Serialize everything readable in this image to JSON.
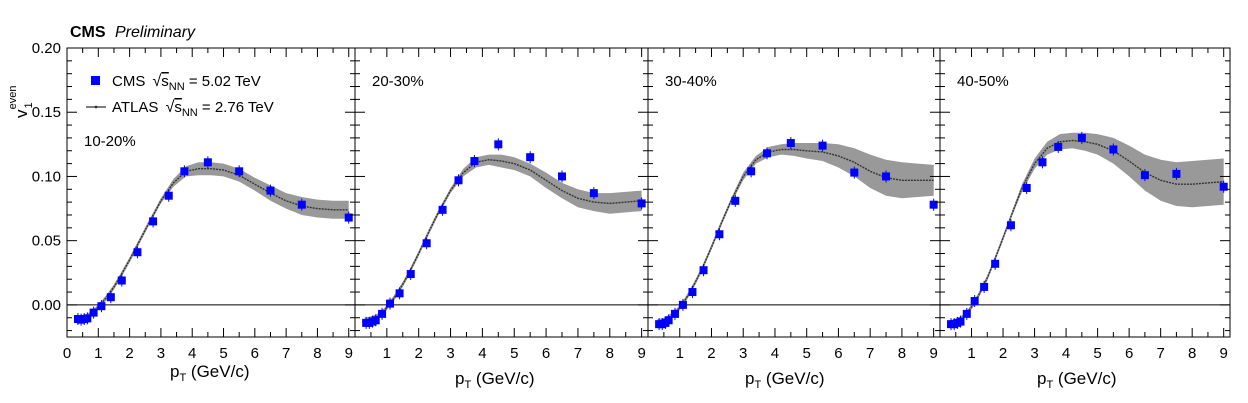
{
  "header": {
    "experiment": "CMS",
    "status": "Preliminary"
  },
  "legend": {
    "cms": {
      "prefix": "CMS",
      "sqrt_s": "s",
      "sub": "NN",
      "value": " = 5.02 TeV"
    },
    "atlas": {
      "prefix": "ATLAS",
      "sqrt_s": "s",
      "sub": "NN",
      "value": " = 2.76 TeV"
    }
  },
  "y_axis_title": {
    "main": "v",
    "sub": "1",
    "sup": "even"
  },
  "x_axis_title": {
    "main": "p",
    "sub": "T",
    "rest": " (GeV/c)"
  },
  "colors": {
    "cms_marker": "#0000ff",
    "atlas_band": "#999999",
    "atlas_line": "#333333",
    "frame": "#000000"
  },
  "chart_data": [
    {
      "type": "scatter",
      "label": "10-20%",
      "xlabel": "p_T (GeV/c)",
      "ylabel": "v_1^even",
      "xlim": [
        0,
        9.2
      ],
      "ylim": [
        -0.025,
        0.2
      ],
      "x_ticks": [
        0,
        1,
        2,
        3,
        4,
        5,
        6,
        7,
        8,
        9
      ],
      "x_tick_labels": [
        "0",
        "1",
        "2",
        "3",
        "4",
        "5",
        "6",
        "7",
        "8",
        "9"
      ],
      "y_ticks": [
        0.0,
        0.05,
        0.1,
        0.15,
        0.2
      ],
      "y_tick_labels": [
        "0.00",
        "0.05",
        "0.10",
        "0.15",
        "0.20"
      ],
      "series": [
        {
          "name": "CMS",
          "marker": "square",
          "x": [
            0.35,
            0.45,
            0.55,
            0.65,
            0.85,
            1.1,
            1.4,
            1.75,
            2.25,
            2.75,
            3.25,
            3.75,
            4.5,
            5.5,
            6.5,
            7.5,
            9.0
          ],
          "y": [
            -0.011,
            -0.0115,
            -0.011,
            -0.0105,
            -0.006,
            -0.001,
            0.006,
            0.019,
            0.041,
            0.065,
            0.085,
            0.104,
            0.111,
            0.104,
            0.089,
            0.078,
            0.068
          ]
        },
        {
          "name": "ATLAS",
          "marker": "line-band",
          "x": [
            0.3,
            0.5,
            0.7,
            0.9,
            1.1,
            1.3,
            1.5,
            1.7,
            2.0,
            2.3,
            2.6,
            3.0,
            3.4,
            3.8,
            4.2,
            4.6,
            5.0,
            5.5,
            6.0,
            6.5,
            7.0,
            7.5,
            8.0,
            8.5,
            9.0
          ],
          "y": [
            -0.011,
            -0.011,
            -0.008,
            -0.004,
            0.001,
            0.007,
            0.014,
            0.022,
            0.035,
            0.049,
            0.063,
            0.081,
            0.095,
            0.104,
            0.106,
            0.106,
            0.105,
            0.101,
            0.094,
            0.087,
            0.081,
            0.077,
            0.075,
            0.074,
            0.074
          ],
          "band_halfwidth": [
            0.002,
            0.002,
            0.002,
            0.002,
            0.002,
            0.002,
            0.002,
            0.002,
            0.002,
            0.002,
            0.002,
            0.002,
            0.003,
            0.004,
            0.005,
            0.005,
            0.005,
            0.005,
            0.005,
            0.006,
            0.006,
            0.007,
            0.007,
            0.007,
            0.007
          ]
        }
      ]
    },
    {
      "type": "scatter",
      "label": "20-30%",
      "xlabel": "p_T (GeV/c)",
      "ylabel": "v_1^even",
      "xlim": [
        0,
        9.2
      ],
      "ylim": [
        -0.025,
        0.2
      ],
      "x_ticks": [
        1,
        2,
        3,
        4,
        5,
        6,
        7,
        8,
        9
      ],
      "x_tick_labels": [
        "1",
        "2",
        "3",
        "4",
        "5",
        "6",
        "7",
        "8",
        "9"
      ],
      "y_ticks": [
        0.0,
        0.05,
        0.1,
        0.15,
        0.2
      ],
      "series": [
        {
          "name": "CMS",
          "marker": "square",
          "x": [
            0.35,
            0.45,
            0.55,
            0.65,
            0.85,
            1.1,
            1.4,
            1.75,
            2.25,
            2.75,
            3.25,
            3.75,
            4.5,
            5.5,
            6.5,
            7.5,
            9.0
          ],
          "y": [
            -0.014,
            -0.014,
            -0.013,
            -0.012,
            -0.007,
            0.001,
            0.009,
            0.024,
            0.048,
            0.074,
            0.097,
            0.112,
            0.125,
            0.115,
            0.1,
            0.087,
            0.079
          ]
        },
        {
          "name": "ATLAS",
          "marker": "line-band",
          "x": [
            0.3,
            0.5,
            0.7,
            0.9,
            1.1,
            1.3,
            1.5,
            1.7,
            2.0,
            2.3,
            2.6,
            3.0,
            3.4,
            3.8,
            4.2,
            4.6,
            5.0,
            5.5,
            6.0,
            6.5,
            7.0,
            7.5,
            8.0,
            8.5,
            9.0
          ],
          "y": [
            -0.012,
            -0.011,
            -0.009,
            -0.005,
            0.001,
            0.008,
            0.016,
            0.025,
            0.04,
            0.056,
            0.071,
            0.089,
            0.103,
            0.111,
            0.113,
            0.112,
            0.11,
            0.105,
            0.097,
            0.089,
            0.083,
            0.08,
            0.079,
            0.08,
            0.081
          ],
          "band_halfwidth": [
            0.002,
            0.002,
            0.002,
            0.002,
            0.002,
            0.002,
            0.002,
            0.002,
            0.002,
            0.002,
            0.002,
            0.002,
            0.003,
            0.004,
            0.004,
            0.005,
            0.005,
            0.005,
            0.006,
            0.006,
            0.007,
            0.007,
            0.008,
            0.008,
            0.008
          ]
        }
      ]
    },
    {
      "type": "scatter",
      "label": "30-40%",
      "xlabel": "p_T (GeV/c)",
      "ylabel": "v_1^even",
      "xlim": [
        0,
        9.2
      ],
      "ylim": [
        -0.025,
        0.2
      ],
      "x_ticks": [
        1,
        2,
        3,
        4,
        5,
        6,
        7,
        8,
        9
      ],
      "x_tick_labels": [
        "1",
        "2",
        "3",
        "4",
        "5",
        "6",
        "7",
        "8",
        "9"
      ],
      "y_ticks": [
        0.0,
        0.05,
        0.1,
        0.15,
        0.2
      ],
      "series": [
        {
          "name": "CMS",
          "marker": "square",
          "x": [
            0.35,
            0.45,
            0.55,
            0.65,
            0.85,
            1.1,
            1.4,
            1.75,
            2.25,
            2.75,
            3.25,
            3.75,
            4.5,
            5.5,
            6.5,
            7.5,
            9.0
          ],
          "y": [
            -0.015,
            -0.015,
            -0.014,
            -0.012,
            -0.007,
            0.0,
            0.01,
            0.027,
            0.055,
            0.081,
            0.104,
            0.118,
            0.126,
            0.124,
            0.103,
            0.1,
            0.078
          ]
        },
        {
          "name": "ATLAS",
          "marker": "line-band",
          "x": [
            0.3,
            0.5,
            0.7,
            0.9,
            1.1,
            1.3,
            1.5,
            1.7,
            2.0,
            2.3,
            2.6,
            3.0,
            3.4,
            3.8,
            4.2,
            4.6,
            5.0,
            5.5,
            6.0,
            6.5,
            7.0,
            7.5,
            8.0,
            8.5,
            9.0
          ],
          "y": [
            -0.013,
            -0.012,
            -0.009,
            -0.005,
            0.001,
            0.009,
            0.018,
            0.028,
            0.045,
            0.063,
            0.08,
            0.1,
            0.113,
            0.119,
            0.121,
            0.121,
            0.12,
            0.119,
            0.116,
            0.111,
            0.104,
            0.099,
            0.097,
            0.097,
            0.097
          ],
          "band_halfwidth": [
            0.002,
            0.002,
            0.002,
            0.002,
            0.002,
            0.002,
            0.002,
            0.002,
            0.002,
            0.002,
            0.002,
            0.003,
            0.003,
            0.004,
            0.004,
            0.005,
            0.006,
            0.007,
            0.009,
            0.011,
            0.013,
            0.014,
            0.014,
            0.013,
            0.012
          ]
        }
      ]
    },
    {
      "type": "scatter",
      "label": "40-50%",
      "xlabel": "p_T (GeV/c)",
      "ylabel": "v_1^even",
      "xlim": [
        0,
        9.2
      ],
      "ylim": [
        -0.025,
        0.2
      ],
      "x_ticks": [
        1,
        2,
        3,
        4,
        5,
        6,
        7,
        8,
        9
      ],
      "x_tick_labels": [
        "1",
        "2",
        "3",
        "4",
        "5",
        "6",
        "7",
        "8",
        "9"
      ],
      "y_ticks": [
        0.0,
        0.05,
        0.1,
        0.15,
        0.2
      ],
      "series": [
        {
          "name": "CMS",
          "marker": "square",
          "x": [
            0.35,
            0.45,
            0.55,
            0.65,
            0.85,
            1.1,
            1.4,
            1.75,
            2.25,
            2.75,
            3.25,
            3.75,
            4.5,
            5.5,
            6.5,
            7.5,
            9.0
          ],
          "y": [
            -0.015,
            -0.015,
            -0.014,
            -0.013,
            -0.007,
            0.003,
            0.014,
            0.032,
            0.062,
            0.091,
            0.111,
            0.123,
            0.13,
            0.121,
            0.101,
            0.102,
            0.092
          ]
        },
        {
          "name": "ATLAS",
          "marker": "line-band",
          "x": [
            0.3,
            0.5,
            0.7,
            0.9,
            1.1,
            1.3,
            1.5,
            1.7,
            2.0,
            2.3,
            2.6,
            3.0,
            3.4,
            3.8,
            4.2,
            4.6,
            5.0,
            5.5,
            6.0,
            6.5,
            7.0,
            7.5,
            8.0,
            8.5,
            9.0
          ],
          "y": [
            -0.014,
            -0.013,
            -0.01,
            -0.005,
            0.002,
            0.011,
            0.021,
            0.033,
            0.052,
            0.072,
            0.091,
            0.11,
            0.122,
            0.127,
            0.128,
            0.127,
            0.125,
            0.12,
            0.112,
            0.103,
            0.097,
            0.094,
            0.094,
            0.095,
            0.096
          ],
          "band_halfwidth": [
            0.002,
            0.002,
            0.002,
            0.002,
            0.002,
            0.002,
            0.002,
            0.002,
            0.002,
            0.002,
            0.003,
            0.004,
            0.005,
            0.006,
            0.006,
            0.007,
            0.008,
            0.01,
            0.012,
            0.014,
            0.016,
            0.017,
            0.018,
            0.018,
            0.018
          ]
        }
      ]
    }
  ]
}
